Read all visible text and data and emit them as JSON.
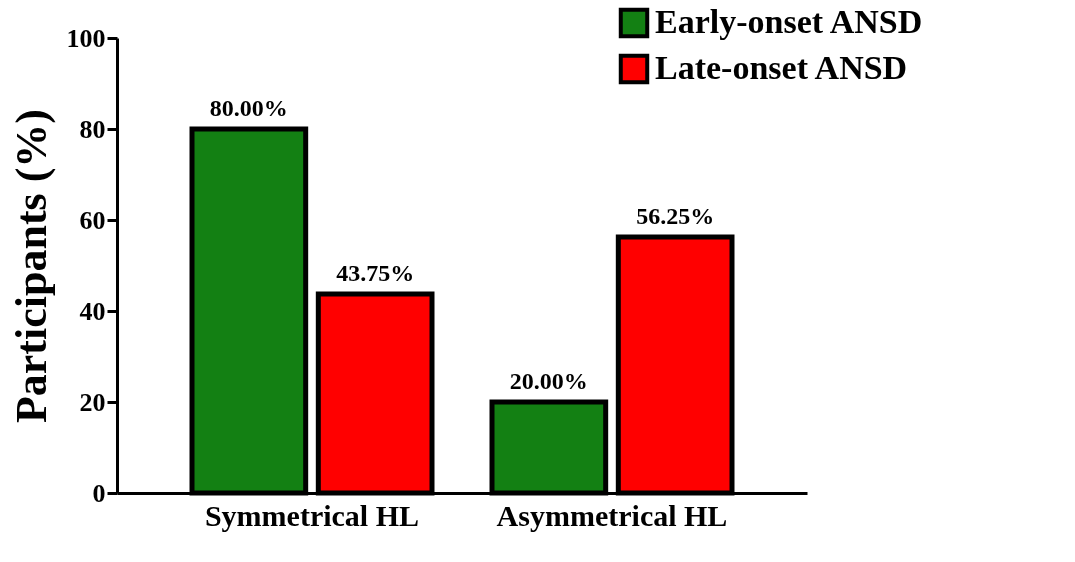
{
  "chart_data": {
    "type": "bar",
    "ylabel": "Participants (%)",
    "categories": [
      "Symmetrical HL",
      "Asymmetrical HL"
    ],
    "series": [
      {
        "name": "Early-onset ANSD",
        "color": "#138013",
        "values": [
          80,
          20
        ],
        "value_labels": [
          "80.00%",
          "20.00%"
        ]
      },
      {
        "name": "Late-onset ANSD",
        "color": "#ff0000",
        "values": [
          43.75,
          56.25
        ],
        "value_labels": [
          "43.75%",
          "56.25%"
        ]
      }
    ],
    "ylim": [
      0,
      100
    ],
    "yticks": [
      0,
      20,
      40,
      60,
      80,
      100
    ],
    "grid": false,
    "legend": "top right"
  }
}
